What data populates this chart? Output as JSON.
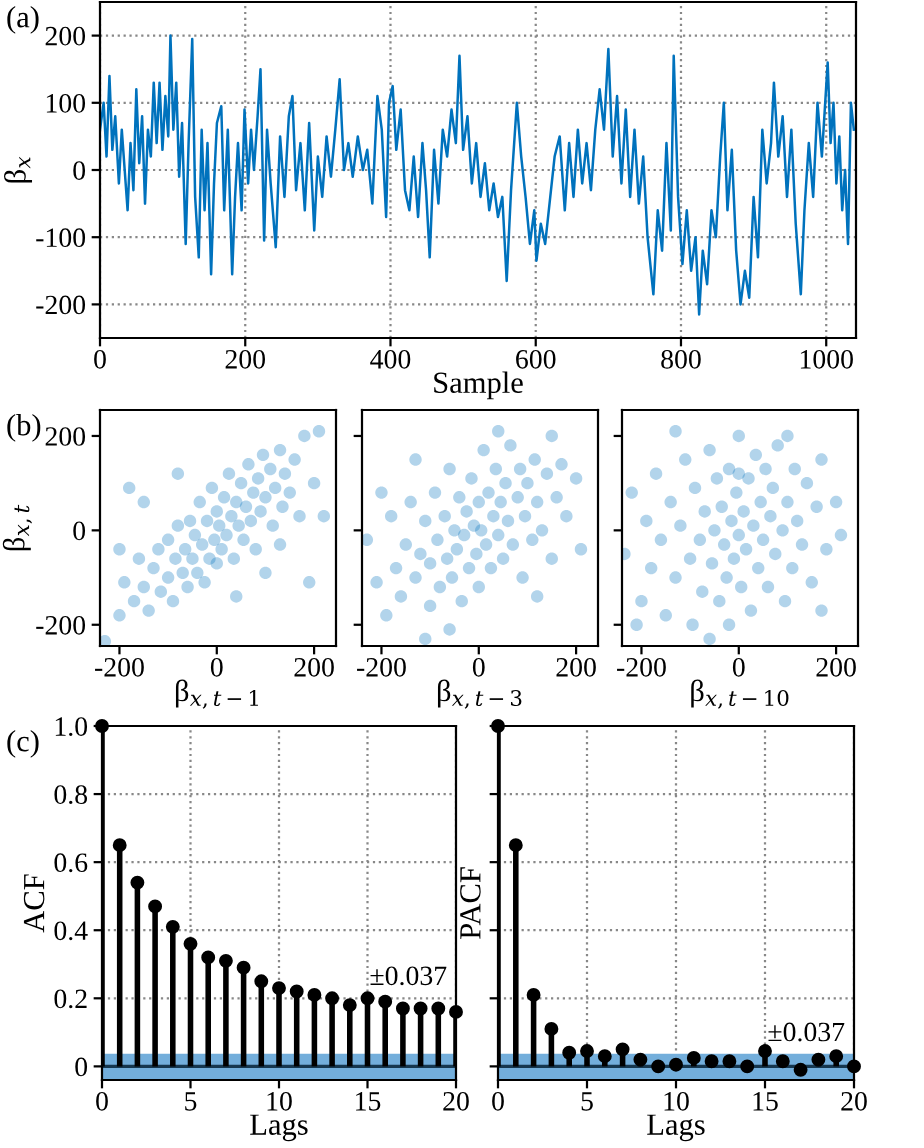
{
  "chart_data": [
    {
      "type": "line",
      "xlabel": "Sample",
      "ylabel": "β$_{x}$",
      "annotations": [
        "(a)"
      ],
      "xlim": [
        0,
        1041
      ],
      "ylim": [
        -250,
        250
      ],
      "xticks": [
        0,
        200,
        400,
        600,
        800,
        1000
      ],
      "yticks": [
        -200,
        -100,
        0,
        100,
        200
      ],
      "grid": true,
      "line_style": "solid",
      "series": [
        {
          "color": "#0072bd",
          "x": [
            0,
            5,
            9,
            13,
            17,
            21,
            26,
            30,
            34,
            38,
            42,
            46,
            50,
            54,
            58,
            62,
            66,
            70,
            74,
            78,
            82,
            86,
            90,
            94,
            97,
            101,
            105,
            109,
            113,
            118,
            122,
            127,
            131,
            136,
            140,
            144,
            148,
            153,
            157,
            161,
            167,
            171,
            176,
            182,
            186,
            190,
            195,
            199,
            204,
            208,
            212,
            217,
            221,
            226,
            230,
            235,
            242,
            248,
            254,
            260,
            265,
            270,
            276,
            282,
            288,
            295,
            300,
            306,
            312,
            318,
            324,
            330,
            336,
            342,
            348,
            355,
            362,
            368,
            375,
            382,
            388,
            394,
            398,
            403,
            408,
            414,
            420,
            426,
            432,
            438,
            444,
            449,
            454,
            460,
            466,
            472,
            478,
            484,
            490,
            495,
            500,
            506,
            512,
            518,
            524,
            530,
            536,
            542,
            548,
            554,
            560,
            566,
            574,
            580,
            586,
            592,
            598,
            601,
            607,
            613,
            620,
            626,
            633,
            640,
            646,
            652,
            658,
            664,
            670,
            676,
            682,
            688,
            694,
            700,
            706,
            712,
            718,
            724,
            730,
            736,
            742,
            748,
            754,
            762,
            768,
            774,
            780,
            786,
            790,
            796,
            802,
            808,
            814,
            820,
            825,
            830,
            836,
            842,
            848,
            854,
            859,
            864,
            870,
            876,
            882,
            888,
            894,
            900,
            906,
            912,
            918,
            924,
            928,
            934,
            940,
            946,
            952,
            958,
            965,
            970,
            976,
            982,
            988,
            994,
            1002,
            1006,
            1010,
            1014,
            1018,
            1022,
            1026,
            1030,
            1034,
            1038
          ],
          "values": [
            60,
            100,
            20,
            140,
            30,
            80,
            -20,
            60,
            0,
            -60,
            40,
            -30,
            120,
            10,
            80,
            -50,
            60,
            20,
            130,
            40,
            130,
            30,
            110,
            50,
            200,
            60,
            130,
            -10,
            70,
            -110,
            40,
            195,
            -40,
            -130,
            60,
            -60,
            40,
            -155,
            -20,
            70,
            95,
            -60,
            60,
            -155,
            -40,
            40,
            -60,
            90,
            -20,
            60,
            0,
            80,
            150,
            -105,
            60,
            -20,
            -115,
            50,
            -40,
            80,
            110,
            -30,
            40,
            -60,
            70,
            -90,
            20,
            -40,
            50,
            -10,
            60,
            135,
            0,
            40,
            -10,
            50,
            0,
            30,
            -50,
            110,
            60,
            -70,
            100,
            125,
            30,
            90,
            -30,
            -60,
            20,
            -70,
            40,
            -30,
            -130,
            30,
            -50,
            60,
            20,
            90,
            40,
            170,
            30,
            80,
            -20,
            40,
            -40,
            10,
            -60,
            -20,
            -70,
            -40,
            -165,
            -30,
            100,
            20,
            -40,
            -110,
            -60,
            -135,
            -80,
            -110,
            -40,
            20,
            50,
            -60,
            40,
            -40,
            60,
            -20,
            40,
            -30,
            60,
            120,
            60,
            180,
            20,
            110,
            -20,
            90,
            -40,
            60,
            -50,
            20,
            -100,
            -185,
            -60,
            -120,
            40,
            -90,
            170,
            -40,
            -140,
            -60,
            -150,
            -100,
            -215,
            -120,
            -170,
            -60,
            -100,
            20,
            100,
            -60,
            30,
            -120,
            -200,
            -150,
            -190,
            -40,
            -130,
            60,
            -20,
            40,
            130,
            20,
            80,
            -40,
            60,
            -80,
            -185,
            -60,
            40,
            -40,
            100,
            20,
            160,
            40,
            100,
            -20,
            50,
            -60,
            0,
            -110,
            100,
            60
          ]
        }
      ]
    },
    {
      "type": "scatter",
      "xlabel": "β$_{x,t−1}$",
      "ylabel": "β$_{x,t}$",
      "annotations": [
        "(b)"
      ],
      "xlim": [
        -240,
        245
      ],
      "ylim": [
        -245,
        255
      ],
      "xticks": [
        -200,
        0,
        200
      ],
      "yticks": [
        -200,
        0,
        200
      ],
      "marker": "circle",
      "series": [
        {
          "color": "#0072bd",
          "x": [
            -230,
            -200,
            -190,
            -170,
            -160,
            -150,
            -140,
            -130,
            -120,
            -115,
            -100,
            -100,
            -90,
            -85,
            -80,
            -70,
            -65,
            -60,
            -55,
            -50,
            -45,
            -40,
            -35,
            -30,
            -25,
            -20,
            -15,
            -10,
            -5,
            0,
            0,
            5,
            10,
            15,
            20,
            25,
            30,
            35,
            40,
            45,
            50,
            55,
            60,
            65,
            70,
            75,
            80,
            85,
            90,
            95,
            100,
            110,
            115,
            120,
            130,
            135,
            140,
            150,
            160,
            170,
            180,
            200,
            210,
            190,
            -150,
            -200,
            100,
            -80,
            130,
            220,
            -180,
            40
          ],
          "values": [
            -235,
            -180,
            -110,
            -150,
            -60,
            -120,
            -170,
            -80,
            -40,
            -130,
            -100,
            -20,
            -150,
            -60,
            10,
            -90,
            -40,
            -120,
            20,
            -60,
            -10,
            -90,
            60,
            -30,
            -110,
            20,
            -60,
            90,
            -20,
            40,
            -70,
            10,
            -40,
            70,
            -10,
            120,
            30,
            -60,
            60,
            10,
            100,
            -20,
            50,
            140,
            20,
            80,
            -40,
            110,
            40,
            160,
            70,
            130,
            10,
            90,
            170,
            50,
            120,
            80,
            150,
            30,
            200,
            100,
            210,
            -110,
            60,
            -40,
            -90,
            120,
            -30,
            30,
            90,
            -140
          ]
        }
      ]
    },
    {
      "type": "scatter",
      "xlabel": "β$_{x,t−3}$",
      "tick_labels": "x",
      "xlim": [
        -240,
        245
      ],
      "ylim": [
        -245,
        255
      ],
      "xticks": [
        -200,
        0,
        200
      ],
      "yticks": [
        -200,
        0,
        200
      ],
      "marker": "circle",
      "series": [
        {
          "color": "#0072bd",
          "x": [
            -230,
            -210,
            -190,
            -180,
            -170,
            -160,
            -150,
            -140,
            -130,
            -120,
            -110,
            -100,
            -100,
            -90,
            -85,
            -80,
            -70,
            -65,
            -60,
            -55,
            -50,
            -45,
            -40,
            -35,
            -30,
            -25,
            -20,
            -15,
            -10,
            -5,
            0,
            0,
            5,
            10,
            15,
            20,
            25,
            30,
            35,
            40,
            45,
            50,
            55,
            60,
            65,
            70,
            80,
            85,
            90,
            95,
            100,
            110,
            115,
            120,
            130,
            140,
            150,
            150,
            160,
            170,
            180,
            200,
            210,
            -130,
            -200,
            -60,
            120,
            40,
            -110
          ],
          "values": [
            -20,
            -110,
            -180,
            30,
            -80,
            -140,
            -30,
            60,
            -100,
            -50,
            20,
            -160,
            -70,
            80,
            -20,
            -120,
            30,
            -60,
            130,
            -100,
            0,
            -40,
            70,
            -150,
            -10,
            40,
            -80,
            110,
            10,
            -50,
            60,
            -120,
            0,
            170,
            -30,
            80,
            -80,
            30,
            130,
            -10,
            60,
            -60,
            100,
            20,
            180,
            -30,
            70,
            130,
            -100,
            30,
            100,
            -20,
            150,
            60,
            0,
            120,
            200,
            -60,
            70,
            140,
            30,
            110,
            -40,
            150,
            80,
            -210,
            -140,
            210,
            -230
          ]
        }
      ]
    },
    {
      "type": "scatter",
      "xlabel": "β$_{x,t−10}$",
      "tick_labels": "x",
      "xlim": [
        -240,
        245
      ],
      "ylim": [
        -245,
        255
      ],
      "xticks": [
        -200,
        0,
        200
      ],
      "yticks": [
        -200,
        0,
        200
      ],
      "marker": "circle",
      "series": [
        {
          "color": "#0072bd",
          "x": [
            -235,
            -220,
            -200,
            -190,
            -180,
            -170,
            -160,
            -150,
            -140,
            -130,
            -120,
            -110,
            -100,
            -95,
            -90,
            -80,
            -75,
            -70,
            -60,
            -55,
            -50,
            -45,
            -40,
            -35,
            -30,
            -25,
            -20,
            -15,
            -10,
            -5,
            0,
            0,
            5,
            10,
            15,
            20,
            25,
            30,
            35,
            40,
            45,
            50,
            55,
            60,
            65,
            70,
            75,
            80,
            90,
            95,
            100,
            110,
            115,
            120,
            130,
            140,
            150,
            160,
            170,
            180,
            200,
            210,
            -210,
            -130,
            100,
            170,
            -60,
            0,
            -20
          ],
          "values": [
            -50,
            80,
            -150,
            20,
            -80,
            120,
            -20,
            -180,
            60,
            -100,
            10,
            150,
            -60,
            -200,
            90,
            -20,
            -130,
            40,
            170,
            -70,
            0,
            110,
            -150,
            50,
            -30,
            -100,
            130,
            20,
            -60,
            80,
            -10,
            200,
            -120,
            40,
            -40,
            110,
            -170,
            10,
            160,
            -80,
            60,
            -20,
            130,
            -120,
            30,
            90,
            -50,
            180,
            0,
            -150,
            60,
            -80,
            130,
            20,
            -30,
            100,
            -110,
            50,
            150,
            -40,
            60,
            -10,
            -200,
            210,
            200,
            -170,
            -230,
            120,
            -200
          ]
        }
      ]
    },
    {
      "type": "lollipop",
      "xlabel": "Lags",
      "ylabel": "ACF",
      "annotations": [
        "(c)"
      ],
      "xlim": [
        0,
        20
      ],
      "ylim": [
        -0.04,
        1.0
      ],
      "xticks": [
        0,
        5,
        10,
        15,
        20
      ],
      "yticks": [
        0,
        0.2,
        0.4,
        0.6,
        0.8,
        {
          "value": 1.0,
          "label": "1.0"
        }
      ],
      "grid": true,
      "marker": "circle",
      "bands": [
        {
          "axis": "y",
          "from": -0.037,
          "to": 0.037,
          "label": "±0.037",
          "color": "#73aedb"
        }
      ],
      "ref_lines": [
        {
          "axis": "y",
          "value": 0,
          "color": "#16374f"
        }
      ],
      "series": [
        {
          "color": "#000000",
          "x": [
            0,
            1,
            2,
            3,
            4,
            5,
            6,
            7,
            8,
            9,
            10,
            11,
            12,
            13,
            14,
            15,
            16,
            17,
            18,
            19,
            20
          ],
          "values": [
            1.0,
            0.65,
            0.54,
            0.47,
            0.41,
            0.36,
            0.32,
            0.31,
            0.29,
            0.25,
            0.23,
            0.22,
            0.21,
            0.2,
            0.18,
            0.2,
            0.19,
            0.17,
            0.17,
            0.17,
            0.16
          ]
        }
      ]
    },
    {
      "type": "lollipop",
      "xlabel": "Lags",
      "ylabel": "PACF",
      "tick_labels": "x",
      "xlim": [
        0,
        20
      ],
      "ylim": [
        -0.04,
        1.0
      ],
      "xticks": [
        0,
        5,
        10,
        15,
        20
      ],
      "yticks": [
        0,
        0.2,
        0.4,
        0.6,
        0.8,
        1
      ],
      "grid": true,
      "marker": "circle",
      "bands": [
        {
          "axis": "y",
          "from": -0.037,
          "to": 0.037,
          "label": "±0.037",
          "color": "#73aedb"
        }
      ],
      "ref_lines": [
        {
          "axis": "y",
          "value": 0,
          "color": "#16374f"
        }
      ],
      "series": [
        {
          "color": "#000000",
          "x": [
            0,
            1,
            2,
            3,
            4,
            5,
            6,
            7,
            8,
            9,
            10,
            11,
            12,
            13,
            14,
            15,
            16,
            17,
            18,
            19,
            20
          ],
          "values": [
            1.0,
            0.65,
            0.21,
            0.11,
            0.04,
            0.045,
            0.03,
            0.05,
            0.02,
            0.0,
            0.005,
            0.025,
            0.015,
            0.015,
            0.0,
            0.045,
            0.015,
            -0.01,
            0.02,
            0.03,
            0.0
          ]
        }
      ]
    }
  ]
}
